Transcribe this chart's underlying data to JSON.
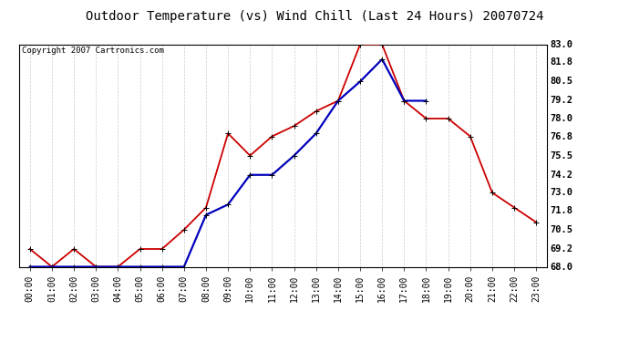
{
  "title": "Outdoor Temperature (vs) Wind Chill (Last 24 Hours) 20070724",
  "copyright": "Copyright 2007 Cartronics.com",
  "x_labels": [
    "00:00",
    "01:00",
    "02:00",
    "03:00",
    "04:00",
    "05:00",
    "06:00",
    "07:00",
    "08:00",
    "09:00",
    "10:00",
    "11:00",
    "12:00",
    "13:00",
    "14:00",
    "15:00",
    "16:00",
    "17:00",
    "18:00",
    "19:00",
    "20:00",
    "21:00",
    "22:00",
    "23:00"
  ],
  "temp_red": [
    69.2,
    68.0,
    69.2,
    68.0,
    68.0,
    69.2,
    69.2,
    70.5,
    72.0,
    77.0,
    75.5,
    76.8,
    77.5,
    78.5,
    79.2,
    83.0,
    83.0,
    79.2,
    78.0,
    78.0,
    76.8,
    73.0,
    72.0,
    71.0
  ],
  "wind_blue": [
    68.0,
    68.0,
    68.0,
    68.0,
    68.0,
    68.0,
    68.0,
    68.0,
    71.5,
    72.2,
    74.2,
    74.2,
    75.5,
    77.0,
    79.2,
    80.5,
    82.0,
    79.2,
    79.2,
    null,
    null,
    null,
    null,
    null
  ],
  "ylim": [
    68.0,
    83.0
  ],
  "yticks": [
    68.0,
    69.2,
    70.5,
    71.8,
    73.0,
    74.2,
    75.5,
    76.8,
    78.0,
    79.2,
    80.5,
    81.8,
    83.0
  ],
  "red_color": "#cc0000",
  "blue_color": "#0000bb",
  "marker": "+",
  "grid_color": "#cccccc",
  "bg_color": "#ffffff",
  "title_fontsize": 10,
  "copyright_fontsize": 6.5,
  "tick_fontsize": 7,
  "linewidth": 1.3,
  "markersize": 5
}
